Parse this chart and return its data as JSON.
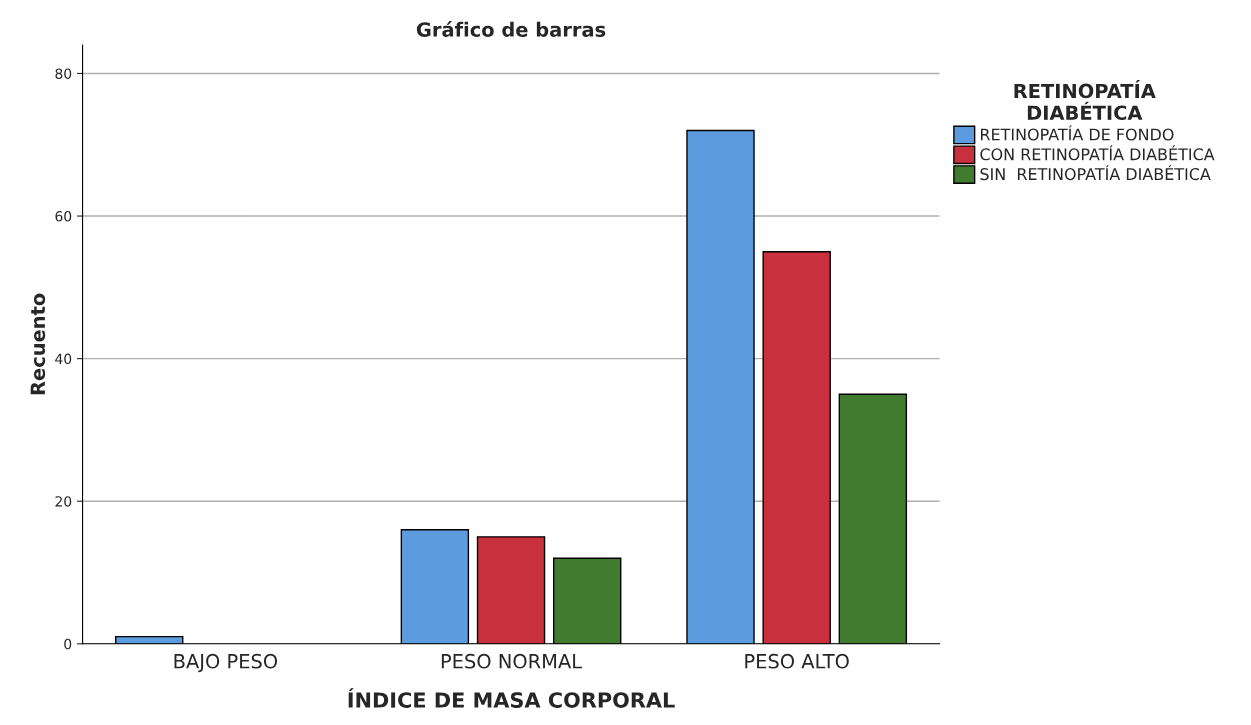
{
  "chart_data": {
    "type": "bar",
    "title": "Gráfico de barras",
    "xlabel": "ÍNDICE DE MASA CORPORAL",
    "ylabel": "Recuento",
    "legend_title": "RETINOPATÍA\nDIABÉTICA",
    "categories": [
      "BAJO PESO",
      "PESO NORMAL",
      "PESO ALTO"
    ],
    "series": [
      {
        "name": "RETINOPATÍA DE FONDO",
        "color": "#5b9bde",
        "values": [
          1,
          16,
          72
        ]
      },
      {
        "name": "CON RETINOPATÍA DIABÉTICA",
        "color": "#c8303e",
        "values": [
          null,
          15,
          55
        ]
      },
      {
        "name": "SIN  RETINOPATÍA DIABÉTICA",
        "color": "#417b2f",
        "values": [
          null,
          12,
          35
        ]
      }
    ],
    "ylim": [
      0,
      84
    ],
    "yticks": [
      0,
      20,
      40,
      60,
      80
    ],
    "grid": "y",
    "legend": "top right"
  }
}
